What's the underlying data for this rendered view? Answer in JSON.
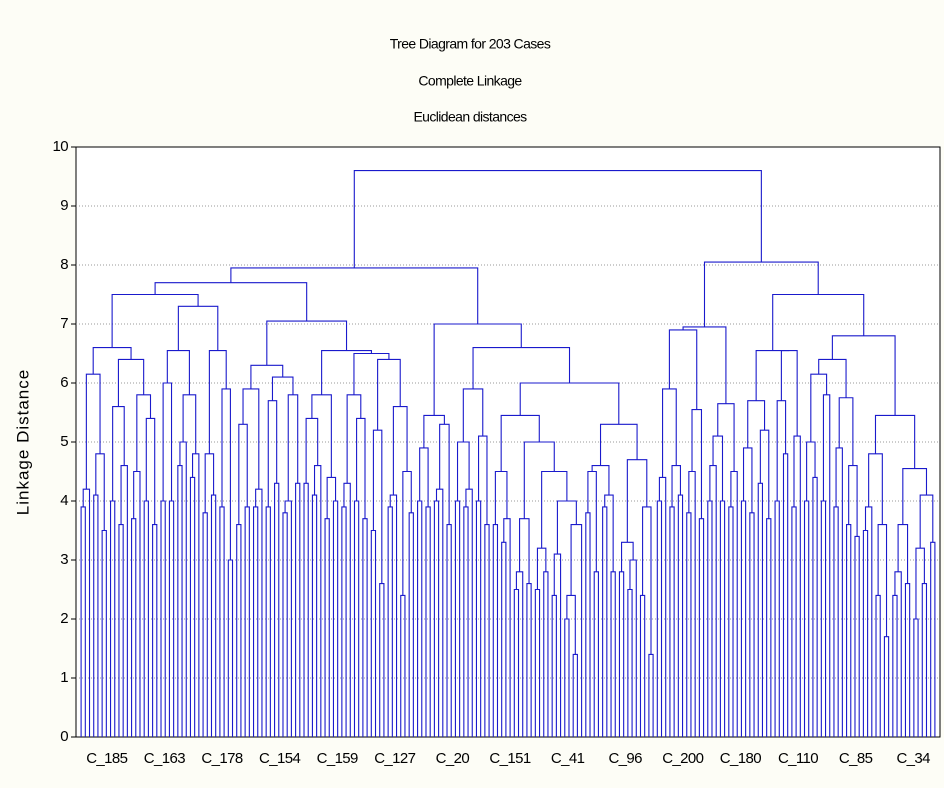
{
  "chart_data": {
    "type": "dendrogram",
    "title": "Tree Diagram for 203 Cases",
    "subtitle": "Complete Linkage",
    "subtitle2": "Euclidean distances",
    "ylabel": "Linkage Distance",
    "ylim": [
      0,
      10
    ],
    "yticks": [
      0,
      1,
      2,
      3,
      4,
      5,
      6,
      7,
      8,
      9,
      10
    ],
    "grid": true,
    "color": "#1a1acc",
    "xlabels": [
      "C_185",
      "C_163",
      "C_178",
      "C_154",
      "C_159",
      "C_127",
      "C_20",
      "C_151",
      "C_41",
      "C_96",
      "C_200",
      "C_180",
      "C_110",
      "C_85",
      "C_34"
    ],
    "tree": [
      9.6,
      [
        7.95,
        [
          7.7,
          [
            7.5,
            [
              6.6,
              [
                6.15,
                [
                  4.2,
                  [
                    3.9,
                    0,
                    0
                  ],
                  0
                ],
                [
                  4.8,
                  [
                    4.1,
                    0,
                    0
                  ],
                  [
                    3.5,
                    0,
                    0
                  ]
                ]
              ],
              [
                6.4,
                [
                  5.6,
                  [
                    4.0,
                    0,
                    0
                  ],
                  [
                    4.6,
                    [
                      3.6,
                      0,
                      0
                    ],
                    0
                  ]
                ],
                [
                  5.8,
                  [
                    4.5,
                    [
                      3.7,
                      0,
                      0
                    ],
                    0
                  ],
                  [
                    5.4,
                    [
                      4.0,
                      0,
                      0
                    ],
                    [
                      3.6,
                      0,
                      0
                    ]
                  ]
                ]
              ]
            ],
            [
              7.3,
              [
                6.55,
                [
                  6.0,
                  [
                    4.0,
                    0,
                    0
                  ],
                  [
                    4.0,
                    0,
                    0
                  ]
                ],
                [
                  5.8,
                  [
                    5.0,
                    [
                      4.6,
                      0,
                      0
                    ],
                    0
                  ],
                  [
                    4.8,
                    [
                      4.4,
                      0,
                      0
                    ],
                    0
                  ]
                ]
              ],
              [
                6.55,
                [
                  4.8,
                  [
                    3.8,
                    0,
                    0
                  ],
                  [
                    4.1,
                    0,
                    0
                  ]
                ],
                [
                  5.9,
                  [
                    3.9,
                    0,
                    0
                  ],
                  [
                    3.0,
                    0,
                    0
                  ]
                ]
              ]
            ]
          ],
          [
            7.05,
            [
              6.3,
              [
                5.9,
                [
                  5.3,
                  [
                    3.6,
                    0,
                    0
                  ],
                  [
                    3.9,
                    0,
                    0
                  ]
                ],
                [
                  4.2,
                  [
                    3.9,
                    0,
                    0
                  ],
                  0
                ]
              ],
              [
                6.1,
                [
                  5.7,
                  [
                    3.9,
                    0,
                    0
                  ],
                  [
                    4.3,
                    0,
                    0
                  ]
                ],
                [
                  5.8,
                  [
                    4.0,
                    [
                      3.8,
                      0,
                      0
                    ],
                    0
                  ],
                  [
                    4.3,
                    0,
                    0
                  ]
                ]
              ]
            ],
            [
              6.55,
              [
                5.8,
                [
                  5.4,
                  [
                    4.3,
                    0,
                    0
                  ],
                  [
                    4.6,
                    [
                      4.1,
                      0,
                      0
                    ],
                    0
                  ]
                ],
                [
                  4.4,
                  [
                    3.7,
                    0,
                    0
                  ],
                  [
                    4.0,
                    0,
                    0
                  ]
                ]
              ],
              [
                6.5,
                [
                  5.8,
                  [
                    4.3,
                    [
                      3.9,
                      0,
                      0
                    ],
                    0
                  ],
                  [
                    5.4,
                    [
                      4.0,
                      0,
                      0
                    ],
                    [
                      3.7,
                      0,
                      0
                    ]
                  ]
                ],
                [
                  6.4,
                  [
                    5.2,
                    [
                      3.5,
                      0,
                      0
                    ],
                    [
                      2.6,
                      0,
                      0
                    ]
                  ],
                  [
                    5.6,
                    [
                      4.1,
                      [
                        3.9,
                        0,
                        0
                      ],
                      0
                    ],
                    [
                      4.5,
                      [
                        2.4,
                        0,
                        0
                      ],
                      [
                        3.8,
                        0,
                        0
                      ]
                    ]
                  ]
                ]
              ]
            ]
          ]
        ],
        [
          7.0,
          [
            5.45,
            [
              4.9,
              [
                4.0,
                0,
                0
              ],
              [
                3.9,
                0,
                0
              ]
            ],
            [
              5.3,
              [
                4.2,
                [
                  4.0,
                  0,
                  0
                ],
                0
              ],
              [
                3.6,
                0,
                0
              ]
            ]
          ],
          [
            6.6,
            [
              5.9,
              [
                5.0,
                [
                  4.0,
                  0,
                  0
                ],
                [
                  4.2,
                  [
                    3.9,
                    0,
                    0
                  ],
                  0
                ]
              ],
              [
                5.1,
                [
                  4.0,
                  0,
                  0
                ],
                [
                  3.6,
                  0,
                  0
                ]
              ]
            ],
            [
              6.0,
              [
                5.45,
                [
                  4.5,
                  [
                    3.6,
                    0,
                    0
                  ],
                  [
                    3.7,
                    [
                      3.3,
                      0,
                      0
                    ],
                    0
                  ]
                ],
                [
                  5.0,
                  [
                    3.7,
                    [
                      2.8,
                      [
                        2.5,
                        0,
                        0
                      ],
                      0
                    ],
                    [
                      2.6,
                      0,
                      0
                    ]
                  ],
                  [
                    4.5,
                    [
                      3.2,
                      [
                        2.5,
                        0,
                        0
                      ],
                      [
                        2.8,
                        0,
                        0
                      ]
                    ],
                    [
                      4.0,
                      [
                        3.1,
                        [
                          2.4,
                          0,
                          0
                        ],
                        0
                      ],
                      [
                        3.6,
                        [
                          2.4,
                          [
                            2.0,
                            0,
                            0
                          ],
                          [
                            1.4,
                            0,
                            0
                          ]
                        ],
                        0
                      ]
                    ]
                  ]
                ]
              ],
              [
                5.3,
                [
                  4.6,
                  [
                    4.5,
                    [
                      3.8,
                      0,
                      0
                    ],
                    [
                      2.8,
                      0,
                      0
                    ]
                  ],
                  [
                    4.1,
                    [
                      3.9,
                      0,
                      0
                    ],
                    [
                      2.8,
                      0,
                      0
                    ]
                  ]
                ],
                [
                  4.7,
                  [
                    3.3,
                    [
                      2.8,
                      0,
                      0
                    ],
                    [
                      3.0,
                      [
                        2.5,
                        0,
                        0
                      ],
                      0
                    ]
                  ],
                  [
                    3.9,
                    [
                      2.4,
                      0,
                      0
                    ],
                    [
                      1.4,
                      0,
                      0
                    ]
                  ]
                ]
              ]
            ]
          ]
        ]
      ],
      [
        8.05,
        [
          6.95,
          [
            6.9,
            [
              5.9,
              [
                4.4,
                [
                  4.0,
                  0,
                  0
                ],
                0
              ],
              [
                4.6,
                [
                  3.9,
                  0,
                  0
                ],
                [
                  4.1,
                  0,
                  0
                ]
              ]
            ],
            [
              5.55,
              [
                4.5,
                [
                  3.8,
                  0,
                  0
                ],
                0
              ],
              [
                3.7,
                0,
                0
              ]
            ]
          ],
          [
            5.65,
            [
              5.1,
              [
                4.6,
                [
                  4.0,
                  0,
                  0
                ],
                0
              ],
              [
                4.0,
                0,
                0
              ]
            ],
            [
              4.5,
              [
                3.9,
                0,
                0
              ],
              0
            ]
          ]
        ],
        [
          7.5,
          [
            6.55,
            [
              5.7,
              [
                4.9,
                [
                  4.0,
                  0,
                  0
                ],
                [
                  3.8,
                  0,
                  0
                ]
              ],
              [
                5.2,
                [
                  4.3,
                  0,
                  0
                ],
                [
                  3.7,
                  0,
                  0
                ]
              ]
            ],
            [
              6.55,
              [
                5.7,
                [
                  4.0,
                  0,
                  0
                ],
                [
                  4.8,
                  0,
                  0
                ]
              ],
              [
                5.1,
                [
                  3.9,
                  0,
                  0
                ],
                0
              ]
            ]
          ],
          [
            6.8,
            [
              6.4,
              [
                6.15,
                [
                  5.0,
                  [
                    4.0,
                    0,
                    0
                  ],
                  [
                    4.4,
                    0,
                    0
                  ]
                ],
                [
                  5.8,
                  [
                    4.0,
                    0,
                    0
                  ],
                  0
                ]
              ],
              [
                5.75,
                [
                  4.9,
                  [
                    3.9,
                    0,
                    0
                  ],
                  0
                ],
                [
                  4.6,
                  [
                    3.6,
                    0,
                    0
                  ],
                  [
                    3.4,
                    0,
                    0
                  ]
                ]
              ]
            ],
            [
              5.45,
              [
                4.8,
                [
                  3.9,
                  [
                    3.5,
                    0,
                    0
                  ],
                  0
                ],
                [
                  3.6,
                  [
                    2.4,
                    0,
                    0
                  ],
                  [
                    1.7,
                    0,
                    0
                  ]
                ]
              ],
              [
                4.55,
                [
                  3.6,
                  [
                    2.8,
                    [
                      2.4,
                      0,
                      0
                    ],
                    0
                  ],
                  [
                    2.6,
                    0,
                    0
                  ]
                ],
                [
                  4.1,
                  [
                    3.2,
                    [
                      2.0,
                      0,
                      0
                    ],
                    [
                      2.6,
                      0,
                      0
                    ]
                  ],
                  [
                    3.3,
                    0,
                    0
                  ]
                ]
              ]
            ]
          ]
        ]
      ]
    ]
  }
}
